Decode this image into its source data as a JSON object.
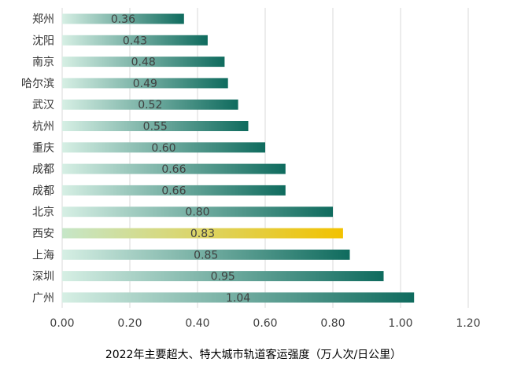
{
  "chart_data": {
    "type": "bar",
    "orientation": "horizontal",
    "title": "2022年主要超大、特大城市轨道客运强度（万人次/日公里）",
    "categories": [
      "郑州",
      "沈阳",
      "南京",
      "哈尔滨",
      "武汉",
      "杭州",
      "重庆",
      "成都",
      "成都",
      "北京",
      "西安",
      "上海",
      "深圳",
      "广州"
    ],
    "values": [
      0.36,
      0.43,
      0.48,
      0.49,
      0.52,
      0.55,
      0.6,
      0.66,
      0.66,
      0.8,
      0.83,
      0.85,
      0.95,
      1.04
    ],
    "value_labels": [
      "0.36",
      "0.43",
      "0.48",
      "0.49",
      "0.52",
      "0.55",
      "0.60",
      "0.66",
      "0.66",
      "0.80",
      "0.83",
      "0.85",
      "0.95",
      "1.04"
    ],
    "highlight_category": "西安",
    "xlim": [
      0,
      1.2
    ],
    "x_ticks": [
      0,
      0.2,
      0.4,
      0.6,
      0.8,
      1.0,
      1.2
    ],
    "x_tick_labels": [
      "0.00",
      "0.20",
      "0.40",
      "0.60",
      "0.80",
      "1.00",
      "1.20"
    ],
    "grid": "vertical",
    "colors": {
      "bar_start": "#d6efe4",
      "bar_end": "#0f6b5e",
      "highlight_start": "#c6e6c8",
      "highlight_end": "#f2c200",
      "grid": "#d9d9d9",
      "text": "#404040",
      "category_text": "#333333"
    }
  }
}
